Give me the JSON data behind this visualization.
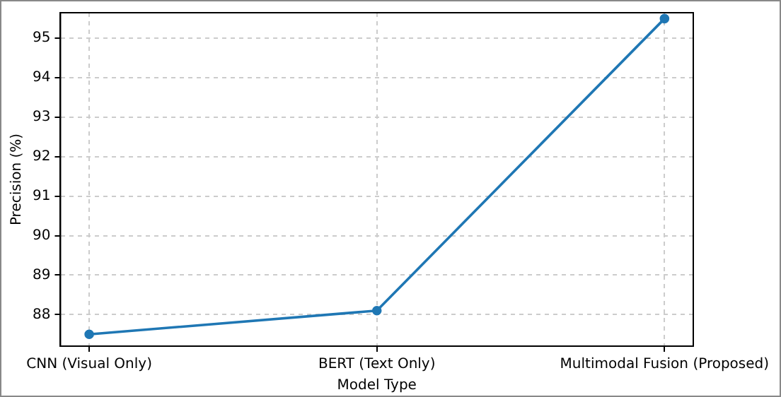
{
  "chart_data": {
    "type": "line",
    "xlabel": "Model Type",
    "ylabel": "Precision (%)",
    "categories": [
      "CNN (Visual Only)",
      "BERT (Text Only)",
      "Multimodal Fusion (Proposed)"
    ],
    "series": [
      {
        "color": "#1f77b4",
        "values": [
          87.5,
          88.1,
          95.5
        ]
      }
    ],
    "ylim": [
      87.2,
      95.65
    ],
    "yticks": [
      88,
      89,
      90,
      91,
      92,
      93,
      94,
      95
    ],
    "grid": true,
    "marker": "circle",
    "line_style": "solid",
    "legend": false
  }
}
